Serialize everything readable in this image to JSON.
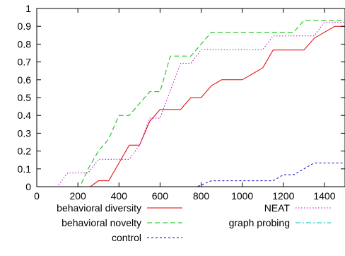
{
  "chart_data": {
    "type": "line",
    "title": "",
    "xlabel": "",
    "ylabel": "",
    "xlim": [
      0,
      1500
    ],
    "ylim": [
      0,
      1
    ],
    "x_ticks": [
      0,
      200,
      400,
      600,
      800,
      1000,
      1200,
      1400
    ],
    "y_ticks": [
      0,
      0.1,
      0.2,
      0.3,
      0.4,
      0.5,
      0.6,
      0.7,
      0.8,
      0.9,
      1
    ],
    "x_tick_labels": [
      "0",
      "200",
      "400",
      "600",
      "800",
      "1000",
      "1200",
      "1400"
    ],
    "y_tick_labels": [
      "0",
      "0.1",
      "0.2",
      "0.3",
      "0.4",
      "0.5",
      "0.6",
      "0.7",
      "0.8",
      "0.9",
      "1"
    ],
    "grid": false,
    "legend_placement": "bottom, outside plot, two columns",
    "series": [
      {
        "name": "behavioral diversity",
        "color": "#e00000",
        "dash": "solid",
        "points": [
          [
            0,
            0
          ],
          [
            260,
            0
          ],
          [
            300,
            0.033
          ],
          [
            350,
            0.033
          ],
          [
            400,
            0.133
          ],
          [
            450,
            0.233
          ],
          [
            500,
            0.233
          ],
          [
            550,
            0.367
          ],
          [
            600,
            0.433
          ],
          [
            700,
            0.433
          ],
          [
            750,
            0.5
          ],
          [
            800,
            0.5
          ],
          [
            850,
            0.567
          ],
          [
            900,
            0.6
          ],
          [
            1000,
            0.6
          ],
          [
            1050,
            0.633
          ],
          [
            1100,
            0.667
          ],
          [
            1150,
            0.767
          ],
          [
            1300,
            0.767
          ],
          [
            1350,
            0.833
          ],
          [
            1450,
            0.9
          ],
          [
            1500,
            0.9
          ]
        ]
      },
      {
        "name": "behavioral novelty",
        "color": "#00c000",
        "dash": "long",
        "points": [
          [
            0,
            0
          ],
          [
            210,
            0
          ],
          [
            250,
            0.1
          ],
          [
            300,
            0.2
          ],
          [
            350,
            0.267
          ],
          [
            400,
            0.4
          ],
          [
            450,
            0.4
          ],
          [
            500,
            0.467
          ],
          [
            550,
            0.533
          ],
          [
            600,
            0.533
          ],
          [
            650,
            0.733
          ],
          [
            750,
            0.733
          ],
          [
            800,
            0.8
          ],
          [
            850,
            0.867
          ],
          [
            1200,
            0.867
          ],
          [
            1250,
            0.867
          ],
          [
            1300,
            0.933
          ],
          [
            1500,
            0.933
          ]
        ]
      },
      {
        "name": "control",
        "color": "#0000c0",
        "dash": "short",
        "points": [
          [
            0,
            0
          ],
          [
            780,
            0
          ],
          [
            850,
            0.033
          ],
          [
            1100,
            0.033
          ],
          [
            1150,
            0.033
          ],
          [
            1200,
            0.067
          ],
          [
            1250,
            0.067
          ],
          [
            1350,
            0.133
          ],
          [
            1500,
            0.133
          ]
        ]
      },
      {
        "name": "NEAT",
        "color": "#c000c0",
        "dash": "dotted",
        "points": [
          [
            0,
            0
          ],
          [
            100,
            0
          ],
          [
            150,
            0.077
          ],
          [
            250,
            0.077
          ],
          [
            300,
            0.154
          ],
          [
            450,
            0.154
          ],
          [
            500,
            0.231
          ],
          [
            550,
            0.385
          ],
          [
            600,
            0.385
          ],
          [
            650,
            0.538
          ],
          [
            700,
            0.692
          ],
          [
            750,
            0.692
          ],
          [
            800,
            0.769
          ],
          [
            1100,
            0.769
          ],
          [
            1150,
            0.846
          ],
          [
            1350,
            0.846
          ],
          [
            1400,
            0.923
          ],
          [
            1450,
            0.923
          ],
          [
            1500,
            0.923
          ]
        ]
      },
      {
        "name": "graph probing",
        "color": "#00c0c0",
        "dash": "dashdot",
        "points": []
      }
    ]
  }
}
